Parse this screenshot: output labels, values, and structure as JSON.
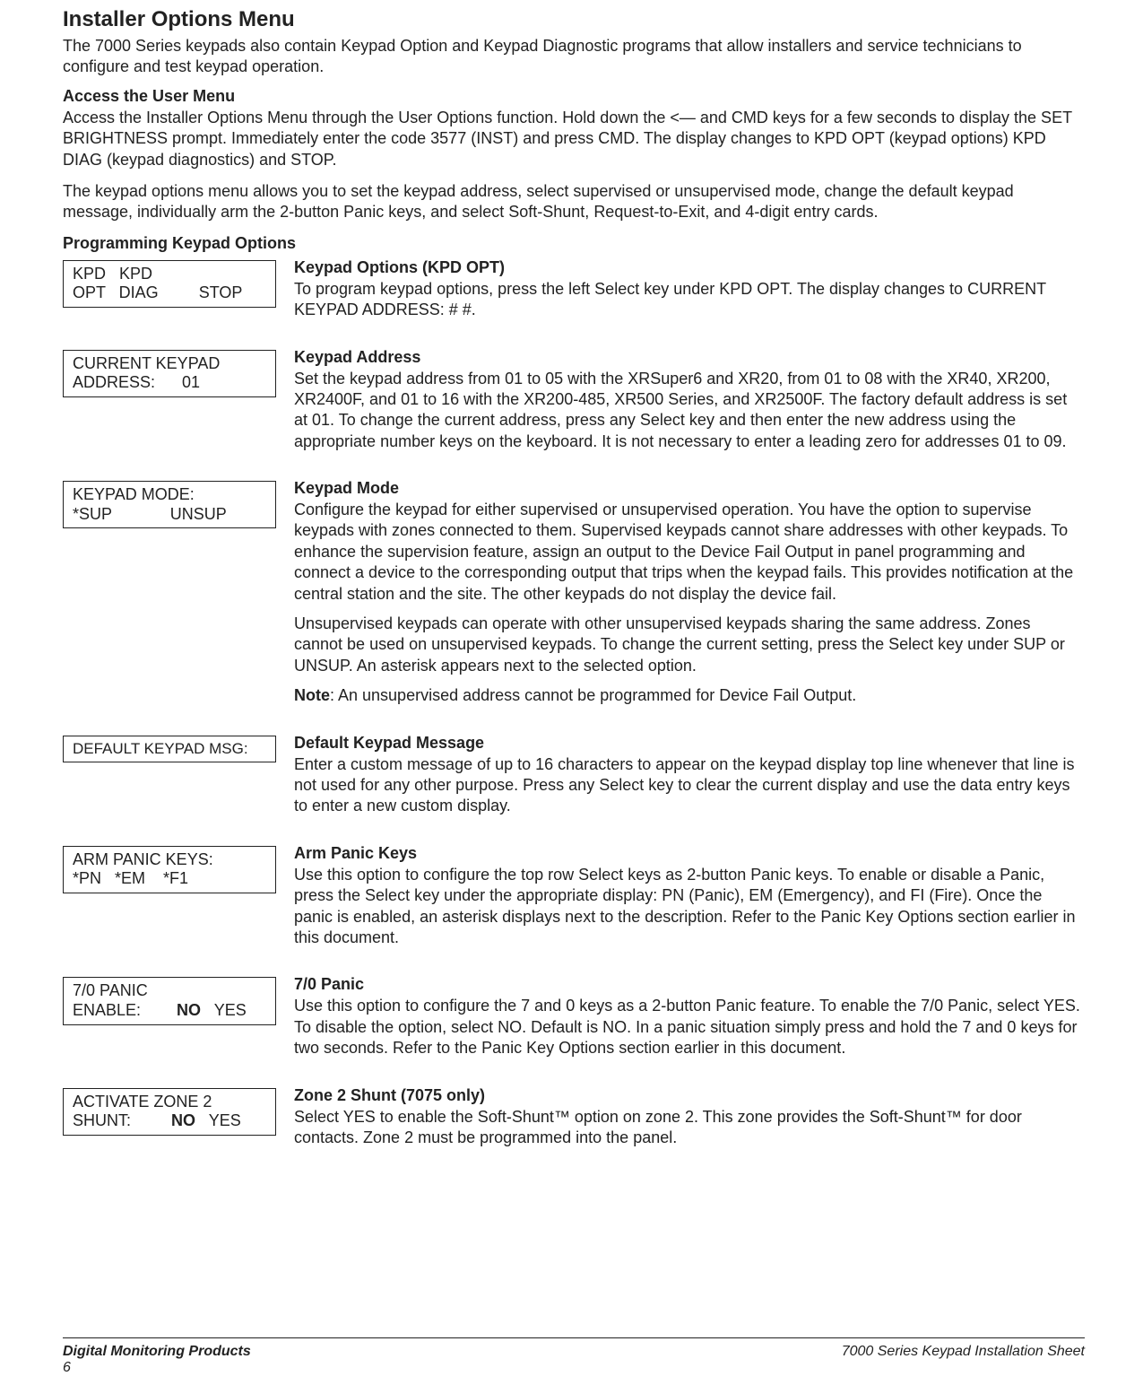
{
  "header": {
    "title": "Installer Options Menu",
    "intro": "The 7000 Series keypads also contain Keypad Option and Keypad Diagnostic programs that allow installers and service technicians to configure and test keypad operation."
  },
  "access": {
    "heading": "Access the User Menu",
    "body": "Access the Installer Options Menu through the User Options function.  Hold down the <— and CMD keys for a few seconds to display the SET BRIGHTNESS prompt.  Immediately enter the code 3577 (INST) and press CMD.  The display changes to KPD OPT (keypad options) KPD DIAG (keypad diagnostics) and STOP."
  },
  "menu_allows": "The keypad options menu allows you to set the keypad address, select supervised or unsupervised mode, change the default keypad message, individually arm the 2-button Panic keys, and select Soft-Shunt, Request-to-Exit, and 4-digit entry cards.",
  "prog_heading": "Programming Keypad Options",
  "options": {
    "kpd_opt": {
      "display": "KPD   KPD\nOPT   DIAG         STOP",
      "title": "Keypad Options (KPD OPT)",
      "text": "To program keypad options, press the left Select key under KPD OPT.  The display changes to CURRENT KEYPAD ADDRESS:  # #."
    },
    "address": {
      "display": "CURRENT KEYPAD\nADDRESS:      01",
      "title": "Keypad Address",
      "text": "Set the keypad address from 01 to 05 with the XRSuper6 and XR20, from 01 to 08 with the XR40, XR200, XR2400F, and 01 to 16 with the XR200-485, XR500 Series, and XR2500F.  The factory default address is set at 01.  To change the current address, press any Select key and then enter the new address using the appropriate number keys on the keyboard.  It is not necessary to enter a leading zero for addresses 01 to 09."
    },
    "mode": {
      "display": "KEYPAD MODE:\n*SUP             UNSUP",
      "title": "Keypad Mode",
      "text1": "Configure the keypad for either supervised or unsupervised operation.  You have the option to supervise keypads with zones connected to them.  Supervised keypads cannot share addresses with other keypads.  To enhance the supervision feature, assign an output to the Device Fail Output in panel programming and connect a device to the corresponding output that trips when the keypad fails.  This provides notification at the central station and the site.  The other keypads do not display the device fail.",
      "text2": "Unsupervised keypads can operate with other unsupervised keypads sharing the same address.  Zones cannot be used on unsupervised keypads.  To change the current setting, press the Select key under SUP or UNSUP.  An asterisk appears next to the selected option.",
      "note_label": "Note",
      "note_text": ": An unsupervised address cannot be programmed for Device Fail Output."
    },
    "default_msg": {
      "display": "DEFAULT KEYPAD MSG:",
      "title": "Default Keypad Message",
      "text": "Enter a custom message of up to 16 characters to appear on the keypad display top line whenever that line is not used for any other purpose.  Press any Select key to clear the current display and use the data entry keys to enter a new custom display."
    },
    "arm_panic": {
      "display": "ARM PANIC KEYS:\n*PN   *EM    *F1",
      "title": "Arm Panic Keys",
      "text": "Use this option to configure the top row Select keys as 2-button Panic keys.  To enable or disable a Panic, press the Select key under the appropriate display: PN (Panic), EM (Emergency), and FI (Fire).  Once the panic is enabled, an asterisk displays next to the description.  Refer to the Panic Key Options section earlier in this document."
    },
    "panic_70": {
      "display_line1": "7/0 PANIC",
      "display_line2a": "ENABLE:        ",
      "display_line2b": "NO",
      "display_line2c": "   YES",
      "title": "7/0 Panic",
      "text": "Use this option to configure the 7 and 0 keys as a 2-button Panic feature.  To enable the 7/0 Panic, select YES.  To disable the option, select NO.  Default is NO.  In a panic situation simply press and hold the 7 and 0 keys for two seconds.  Refer to the Panic Key Options section earlier in this document."
    },
    "zone2": {
      "display_line1": "ACTIVATE ZONE 2",
      "display_line2a": "SHUNT:         ",
      "display_line2b": "NO",
      "display_line2c": "   YES",
      "title": "Zone 2 Shunt (7075 only)",
      "text": "Select YES to enable the Soft-Shunt™ option on zone 2. This zone provides the Soft-Shunt™ for door contacts. Zone 2 must be programmed into the panel."
    }
  },
  "footer": {
    "left": "Digital Monitoring Products",
    "right": "7000 Series Keypad Installation Sheet",
    "page": "6"
  }
}
